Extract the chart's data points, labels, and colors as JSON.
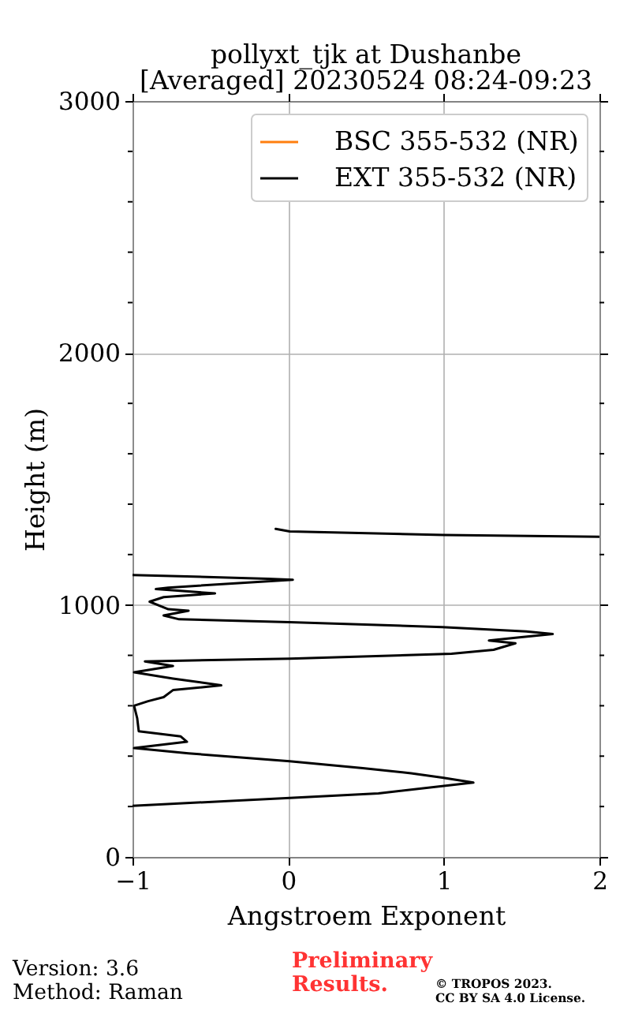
{
  "chart_data": {
    "type": "line",
    "title": "pollyxt_tjk at Dushanbe",
    "subtitle": "[Averaged] 20230524 08:24-09:23",
    "xlabel": "Angstroem Exponent",
    "ylabel": "Height (m)",
    "series": [
      {
        "name": "BSC 355-532 (NR)",
        "color": "#ff7f0e"
      },
      {
        "name": "EXT 355-532 (NR)",
        "color": "#000000",
        "x": [
          -1.0,
          0.01,
          0.58,
          1.19,
          0.99,
          0.79,
          0.48,
          0.01,
          -0.64,
          -0.99,
          -0.65,
          -0.69,
          -0.96,
          -0.97,
          -0.99,
          -0.9,
          -0.8,
          -0.74,
          -0.43,
          -0.74,
          -0.99,
          -0.74,
          -0.92,
          0.01,
          1.05,
          1.32,
          1.46,
          1.29,
          1.46,
          1.7,
          1.53,
          0.99,
          0.01,
          -0.7,
          -0.8,
          -0.64,
          -0.77,
          -0.89,
          -0.8,
          -0.47,
          -0.85,
          -0.77,
          0.03,
          -0.13,
          -1.0,
          null,
          2.0,
          1.0,
          0.01,
          -0.08
        ],
        "values": [
          203,
          234,
          252,
          295,
          315,
          332,
          352,
          380,
          411,
          432,
          457,
          478,
          499,
          551,
          600,
          618,
          634,
          662,
          681,
          708,
          733,
          758,
          776,
          787,
          806,
          822,
          848,
          859,
          870,
          885,
          895,
          912,
          932,
          943,
          958,
          977,
          983,
          1013,
          1031,
          1046,
          1063,
          1069,
          1100,
          1104,
          1119,
          null,
          1271,
          1278,
          1292,
          1302
        ]
      }
    ],
    "xlim": [
      -1,
      2
    ],
    "ylim": [
      0,
      3000
    ],
    "xticks": [
      -1,
      0,
      1,
      2
    ],
    "yticks": [
      0,
      {
        "value": 200,
        "label": null
      },
      {
        "value": 400,
        "label": null
      },
      {
        "value": 600,
        "label": null
      },
      {
        "value": 800,
        "label": null
      },
      1000,
      {
        "value": 1200,
        "label": null
      },
      {
        "value": 1400,
        "label": null
      },
      {
        "value": 1600,
        "label": null
      },
      {
        "value": 1800,
        "label": null
      },
      2000,
      {
        "value": 2200,
        "label": null
      },
      {
        "value": 2400,
        "label": null
      },
      {
        "value": 2600,
        "label": null
      },
      {
        "value": 2800,
        "label": null
      },
      3000
    ],
    "grid": true,
    "legend": "top right",
    "annotations": [
      "Version: 3.6",
      "Method: Raman",
      "Preliminary Results.",
      "© TROPOS 2023.",
      "CC BY SA 4.0 License."
    ]
  }
}
